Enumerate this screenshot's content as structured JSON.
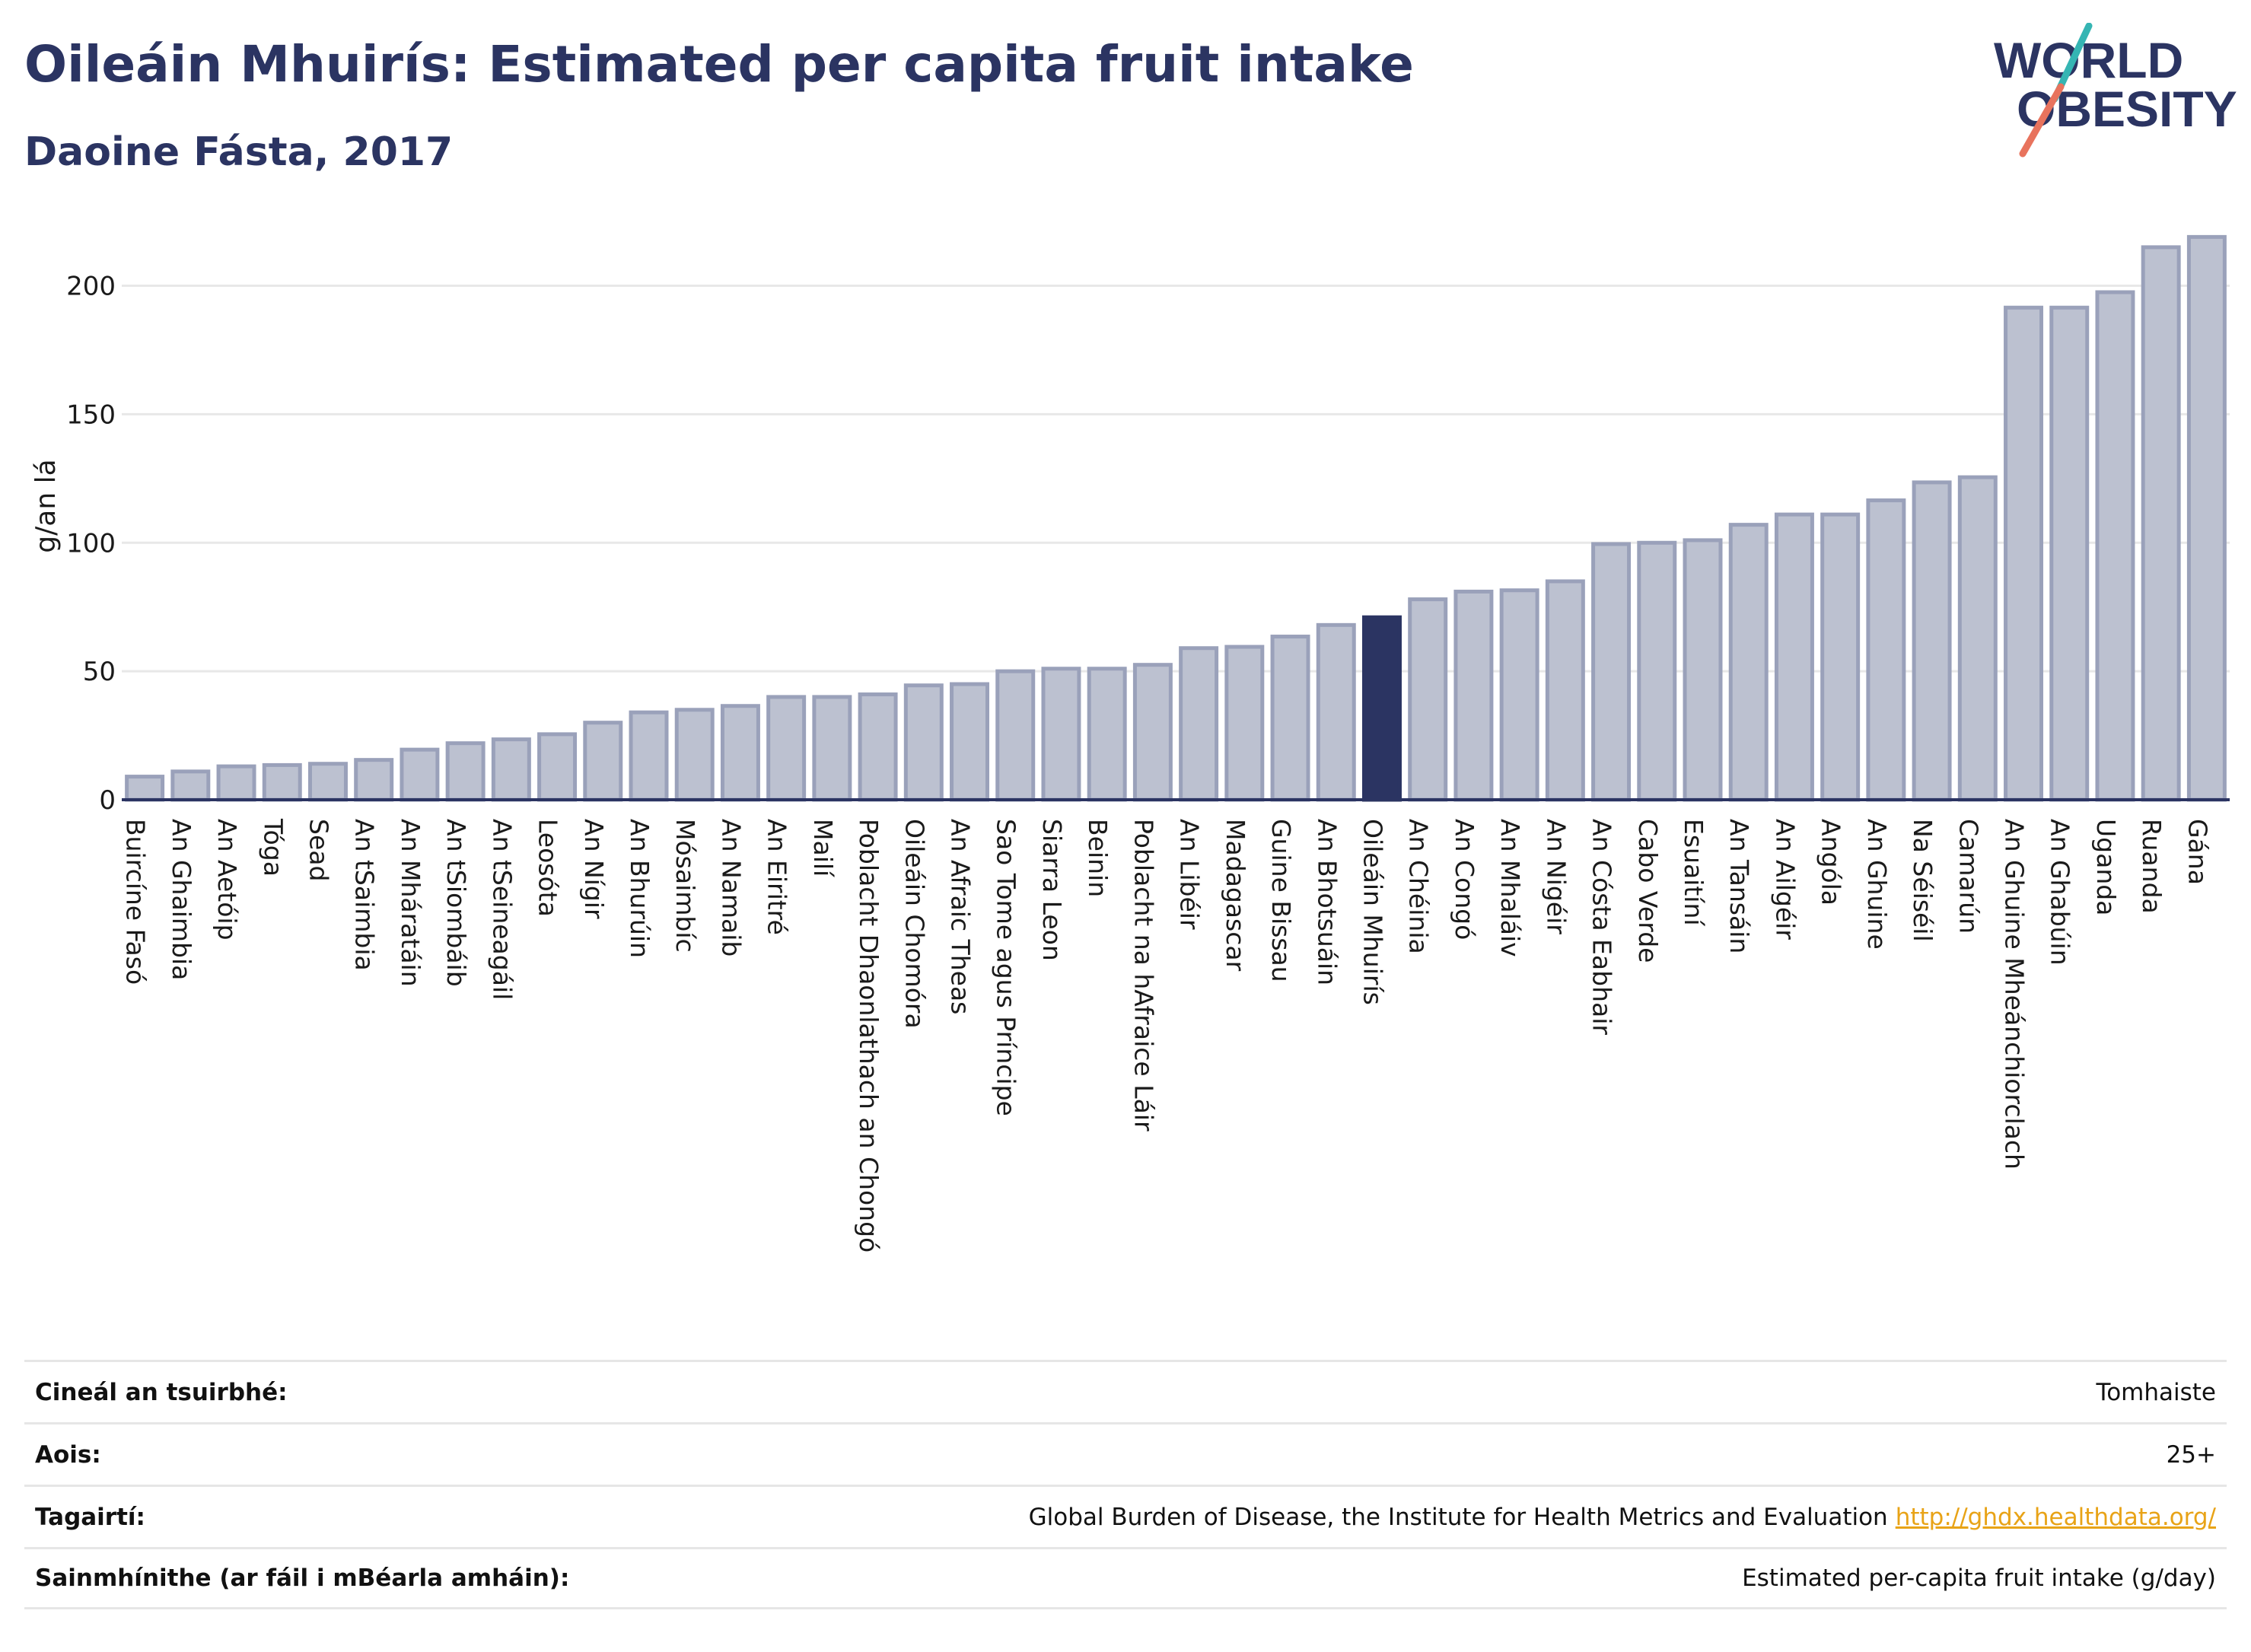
{
  "title": "Oileáin Mhuirís: Estimated per capita fruit intake",
  "subtitle": "Daoine Fásta, 2017",
  "logo": {
    "line1": "WORLD",
    "line2": "OBESITY"
  },
  "colors": {
    "bar": "#bcc1d0",
    "bar_stroke": "#9aa1ba",
    "highlight": "#2b3462",
    "title": "#2b3462",
    "grid": "#e8e8e8",
    "link": "#e8a317",
    "logo_teal": "#35b5b3",
    "logo_red": "#e8735d"
  },
  "chart_data": {
    "type": "bar",
    "ylabel": "g/an lá",
    "xlabel": "",
    "ylim": [
      0,
      220
    ],
    "yticks": [
      0,
      50,
      100,
      150,
      200
    ],
    "grid": true,
    "highlight": "Oileáin Mhuirís",
    "categories": [
      "Buircíne Fasó",
      "An Ghaimbia",
      "An Aetóip",
      "Tóga",
      "Sead",
      "An tSaimbia",
      "An Mháratáin",
      "An tSiombáib",
      "An tSeineagáil",
      "Leosóta",
      "An Nígir",
      "An Bhurúin",
      "Mósaimbíc",
      "An Namaib",
      "An Eiritré",
      "Mailí",
      "Poblacht Dhaonlathach an Chongó",
      "Oileáin Chomóra",
      "An Afraic Theas",
      "Sao Tome agus Príncipe",
      "Siarra Leon",
      "Beinin",
      "Poblacht na hAfraice Láir",
      "An Libéir",
      "Madagascar",
      "Guine Bissau",
      "An Bhotsuáin",
      "Oileáin Mhuirís",
      "An Chéinia",
      "An Congó",
      "An Mhaláiv",
      "An Nigéir",
      "An Cósta Eabhair",
      "Cabo Verde",
      "Esuaitíní",
      "An Tansáin",
      "An Ailgéir",
      "Angóla",
      "An Ghuine",
      "Na Séiséil",
      "Camarún",
      "An Ghuine Mheánchiorclach",
      "An Ghabúin",
      "Uganda",
      "Ruanda",
      "Gána"
    ],
    "values": [
      9,
      11,
      13,
      13.5,
      14,
      15.5,
      19.5,
      22,
      23.5,
      25.5,
      30,
      34,
      35,
      36.5,
      40,
      40,
      41,
      44.5,
      45,
      50,
      51,
      51,
      52.5,
      59,
      59.5,
      63.5,
      68,
      71,
      78,
      81,
      81.5,
      85,
      99.5,
      100,
      101,
      107,
      111,
      111,
      116.5,
      123.5,
      125.5,
      191.5,
      191.5,
      197.5,
      215,
      219
    ]
  },
  "footer": [
    {
      "label": "Cineál an tsuirbhé:",
      "value": "Tomhaiste"
    },
    {
      "label": "Aois:",
      "value": "25+"
    },
    {
      "label": "Tagairtí:",
      "value": "Global Burden of Disease, the Institute for Health Metrics and Evaluation",
      "link": "http://ghdx.healthdata.org/"
    },
    {
      "label": "Sainmhínithe (ar fáil i mBéarla amháin):",
      "value": "Estimated per-capita fruit intake (g/day)"
    }
  ]
}
